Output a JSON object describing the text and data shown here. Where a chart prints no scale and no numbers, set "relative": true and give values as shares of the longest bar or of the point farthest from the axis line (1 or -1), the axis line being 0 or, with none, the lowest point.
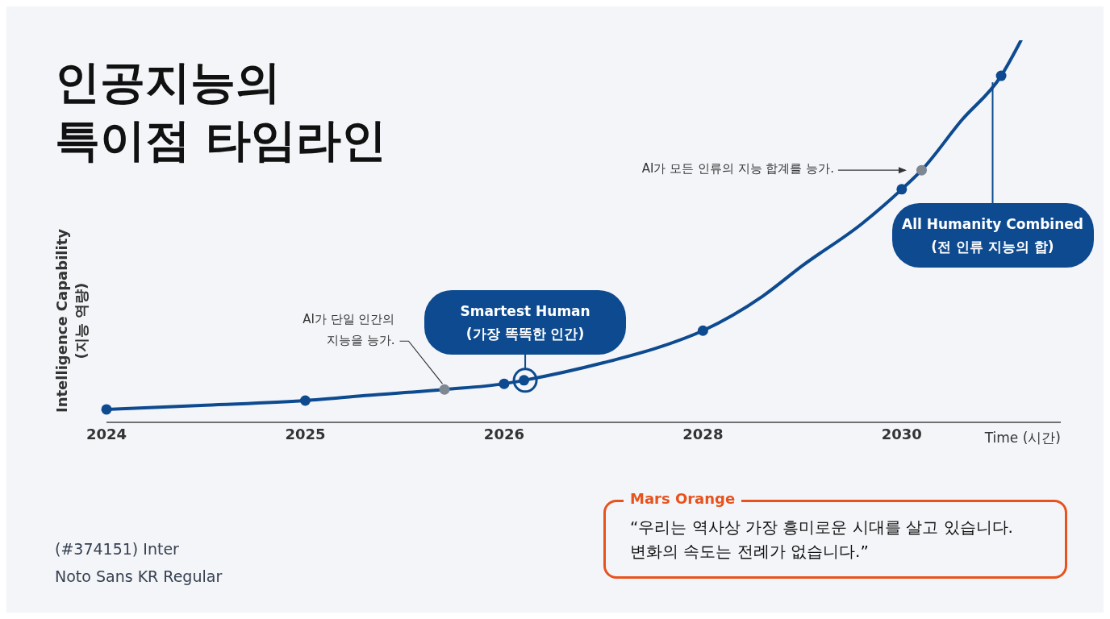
{
  "chart_data": {
    "type": "line",
    "title": "인공지능의\n특이점 타임라인",
    "xlabel": "Time (시간)",
    "ylabel": "Intelligence Capability (지능 역량)",
    "relative": true,
    "categories": [
      "2024",
      null,
      null,
      null,
      null,
      null,
      null,
      null,
      null,
      null,
      "2025",
      null,
      null,
      null,
      null,
      null,
      null,
      null,
      null,
      null,
      "2026",
      null,
      null,
      null,
      null,
      null,
      null,
      null,
      null,
      null,
      "2028",
      null,
      null,
      null,
      null,
      null,
      null,
      null,
      null,
      null,
      "2030",
      null,
      null,
      null,
      null,
      null,
      null,
      null,
      null
    ],
    "series": [
      {
        "color": "#0d4a8f",
        "marker": "none",
        "values": [
          0.034,
          null,
          null,
          null,
          null,
          0.045,
          null,
          null,
          null,
          null,
          0.057,
          null,
          null,
          0.07,
          null,
          null,
          null,
          0.086,
          null,
          null,
          0.101,
          0.11,
          null,
          null,
          null,
          0.156,
          null,
          null,
          0.2,
          null,
          0.24,
          null,
          null,
          0.33,
          null,
          0.41,
          null,
          null,
          0.52,
          null,
          0.61,
          0.66,
          null,
          0.79,
          null,
          0.907,
          1,
          null,
          null
        ]
      },
      {
        "type": "scatter",
        "color": "#0d4a8f",
        "marker": "circle",
        "values": [
          0.034,
          null,
          null,
          null,
          null,
          null,
          null,
          null,
          null,
          null,
          0.057,
          null,
          null,
          null,
          null,
          null,
          null,
          null,
          null,
          null,
          0.101,
          null,
          null,
          null,
          null,
          null,
          null,
          null,
          null,
          null,
          0.24,
          null,
          null,
          null,
          null,
          null,
          null,
          null,
          null,
          null,
          0.61,
          null,
          null,
          null,
          null,
          0.907,
          null,
          null,
          null
        ]
      },
      {
        "type": "scatter",
        "color": "#0d4a8f",
        "marker": "circle",
        "values": [
          null,
          null,
          null,
          null,
          null,
          null,
          null,
          null,
          null,
          null,
          null,
          null,
          null,
          null,
          null,
          null,
          null,
          null,
          null,
          null,
          null,
          0.11,
          null,
          null,
          null,
          null,
          null,
          null,
          null,
          null,
          null,
          null,
          null,
          null,
          null,
          null,
          null,
          null,
          null,
          null,
          null,
          null,
          null,
          null,
          null,
          null,
          null,
          null,
          null
        ]
      },
      {
        "type": "scatter",
        "color": "#7f8793",
        "marker": "circle",
        "values": [
          null,
          null,
          null,
          null,
          null,
          null,
          null,
          null,
          null,
          null,
          null,
          null,
          null,
          null,
          null,
          null,
          null,
          0.086,
          null,
          null,
          null,
          null,
          null,
          null,
          null,
          null,
          null,
          null,
          null,
          null,
          null,
          null,
          null,
          null,
          null,
          null,
          null,
          null,
          null,
          null,
          null,
          0.66,
          null,
          null,
          null,
          null,
          null,
          null,
          null
        ]
      }
    ],
    "annotations": [
      "AI가 단일 인간의\n지능을 능가.",
      "Smartest Human\n(가장 똑똑한 인간)",
      "AI가 모든 인류의 지능 합계를 능가.",
      "All Humanity Combined\n(전 인류 지능의 합)",
      "(#374151) Inter",
      "Noto Sans KR Regular",
      "Mars Orange",
      "“우리는 역사상 가장 흥미로운 시대를 살고 있습니다.\n변화의 속도는 전례가 없습니다.”"
    ]
  }
}
